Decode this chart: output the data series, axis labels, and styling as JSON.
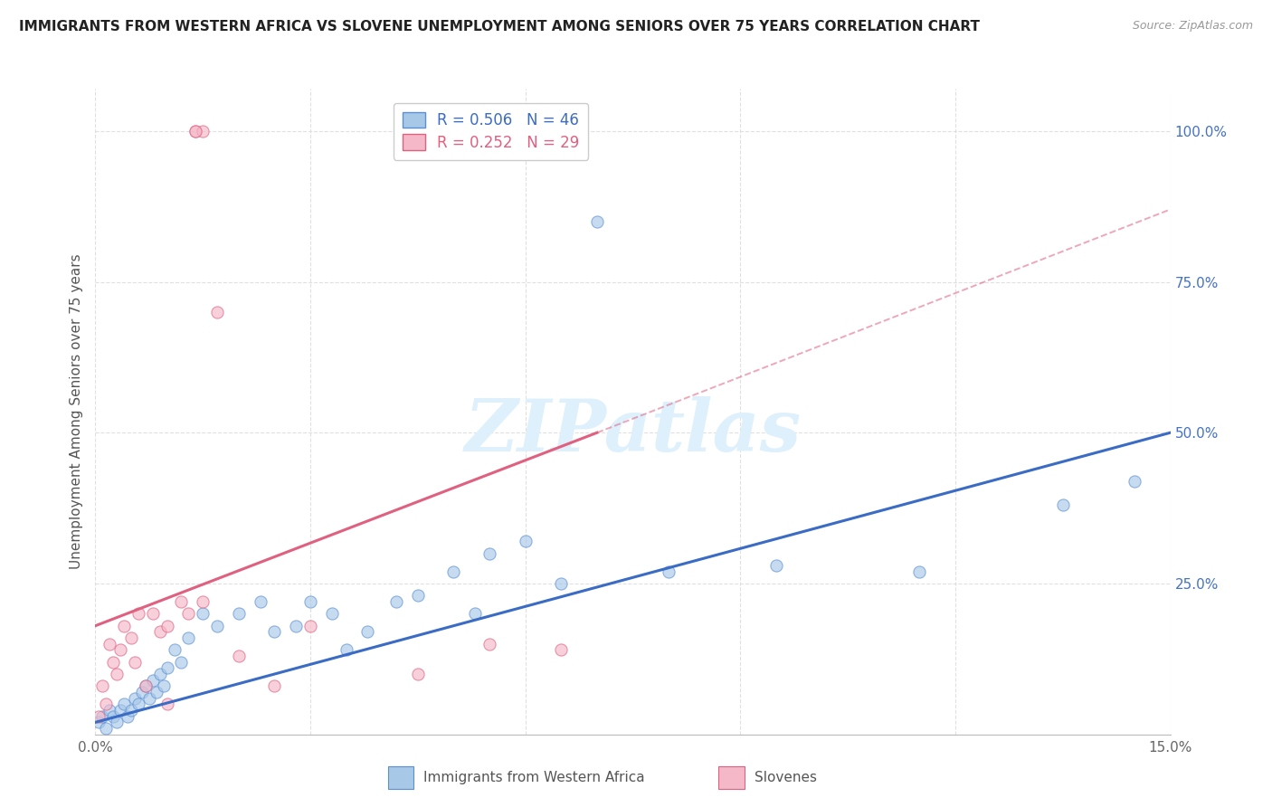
{
  "title": "IMMIGRANTS FROM WESTERN AFRICA VS SLOVENE UNEMPLOYMENT AMONG SENIORS OVER 75 YEARS CORRELATION CHART",
  "source": "Source: ZipAtlas.com",
  "ylabel": "Unemployment Among Seniors over 75 years",
  "xlim": [
    0.0,
    15.0
  ],
  "ylim": [
    0.0,
    107.0
  ],
  "blue_scatter_x": [
    0.05,
    0.1,
    0.15,
    0.2,
    0.25,
    0.3,
    0.35,
    0.4,
    0.45,
    0.5,
    0.55,
    0.6,
    0.65,
    0.7,
    0.75,
    0.8,
    0.85,
    0.9,
    0.95,
    1.0,
    1.1,
    1.2,
    1.3,
    1.5,
    1.7,
    2.0,
    2.3,
    2.5,
    2.8,
    3.0,
    3.3,
    3.5,
    3.8,
    4.2,
    4.5,
    5.0,
    5.3,
    5.5,
    6.0,
    6.5,
    7.0,
    8.0,
    9.5,
    11.5,
    13.5,
    14.5
  ],
  "blue_scatter_y": [
    2,
    3,
    1,
    4,
    3,
    2,
    4,
    5,
    3,
    4,
    6,
    5,
    7,
    8,
    6,
    9,
    7,
    10,
    8,
    11,
    14,
    12,
    16,
    20,
    18,
    20,
    22,
    17,
    18,
    22,
    20,
    14,
    17,
    22,
    23,
    27,
    20,
    30,
    32,
    25,
    85,
    27,
    28,
    27,
    38,
    42
  ],
  "pink_scatter_x": [
    0.05,
    0.1,
    0.15,
    0.2,
    0.25,
    0.3,
    0.35,
    0.4,
    0.5,
    0.55,
    0.6,
    0.7,
    0.8,
    0.9,
    1.0,
    1.0,
    1.2,
    1.3,
    1.4,
    1.5,
    1.7,
    2.0,
    2.5,
    3.0,
    4.5,
    5.5,
    6.5,
    1.4,
    1.5
  ],
  "pink_scatter_y": [
    3,
    8,
    5,
    15,
    12,
    10,
    14,
    18,
    16,
    12,
    20,
    8,
    20,
    17,
    18,
    5,
    22,
    20,
    100,
    100,
    70,
    13,
    8,
    18,
    10,
    15,
    14,
    100,
    22
  ],
  "blue_line_x0": 0.0,
  "blue_line_y0": 2.0,
  "blue_line_x1": 15.0,
  "blue_line_y1": 50.0,
  "pink_solid_x0": 0.0,
  "pink_solid_y0": 18.0,
  "pink_solid_x1": 7.0,
  "pink_solid_y1": 50.0,
  "pink_dash_x0": 7.0,
  "pink_dash_y0": 50.0,
  "pink_dash_x1": 15.0,
  "pink_dash_y1": 87.0,
  "blue_dot_color": "#A8C8E8",
  "blue_dot_edge": "#5B8FD4",
  "pink_dot_color": "#F5B8C8",
  "pink_dot_edge": "#E06080",
  "blue_line_color": "#3B6CC5",
  "pink_line_color": "#E06080",
  "right_tick_color": "#4472C4",
  "watermark_text": "ZIPatlas",
  "watermark_color": "#DDF0FC",
  "legend_blue_label": "R = 0.506   N = 46",
  "legend_pink_label": "R = 0.252   N = 29",
  "bottom_label_blue": "Immigrants from Western Africa",
  "bottom_label_pink": "Slovenes"
}
